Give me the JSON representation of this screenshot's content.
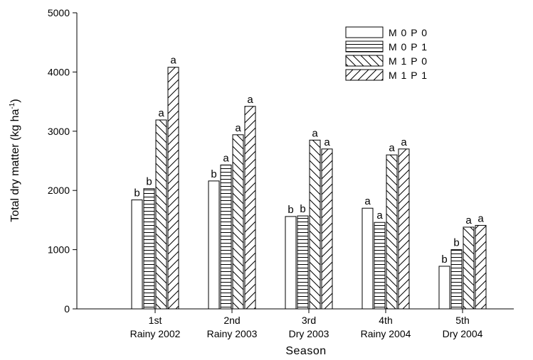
{
  "chart_data": {
    "type": "bar",
    "xlabel": "Season",
    "ylabel_main": "Total dry matter (kg ha",
    "ylabel_sup": "-1",
    "ylabel_close": ")",
    "ylim": [
      0,
      5000
    ],
    "yticks": [
      "0",
      "1000",
      "2000",
      "3000",
      "4000",
      "5000"
    ],
    "categories": [
      {
        "line1": "1st",
        "line2": "Rainy 2002"
      },
      {
        "line1": "2nd",
        "line2": "Rainy 2003"
      },
      {
        "line1": "3rd",
        "line2": "Dry 2003"
      },
      {
        "line1": "4th",
        "line2": "Rainy 2004"
      },
      {
        "line1": "5th",
        "line2": "Dry 2004"
      }
    ],
    "series": [
      {
        "name": "M 0 P 0",
        "pattern": "blank",
        "values": [
          1840,
          2160,
          1560,
          1700,
          720
        ],
        "letters": [
          "b",
          "b",
          "b",
          "a",
          "b"
        ]
      },
      {
        "name": "M 0 P 1",
        "pattern": "horizontal",
        "values": [
          2030,
          2430,
          1570,
          1460,
          1000
        ],
        "letters": [
          "b",
          "a",
          "b",
          "a",
          "b"
        ]
      },
      {
        "name": "M 1 P 0",
        "pattern": "backslash",
        "values": [
          3190,
          2940,
          2850,
          2600,
          1380
        ],
        "letters": [
          "a",
          "a",
          "a",
          "a",
          "a"
        ]
      },
      {
        "name": "M 1 P 1",
        "pattern": "slash",
        "values": [
          4080,
          3420,
          2700,
          2700,
          1410
        ],
        "letters": [
          "a",
          "a",
          "a",
          "a",
          "a"
        ]
      }
    ],
    "legend_position": "top-right",
    "grid": false
  }
}
